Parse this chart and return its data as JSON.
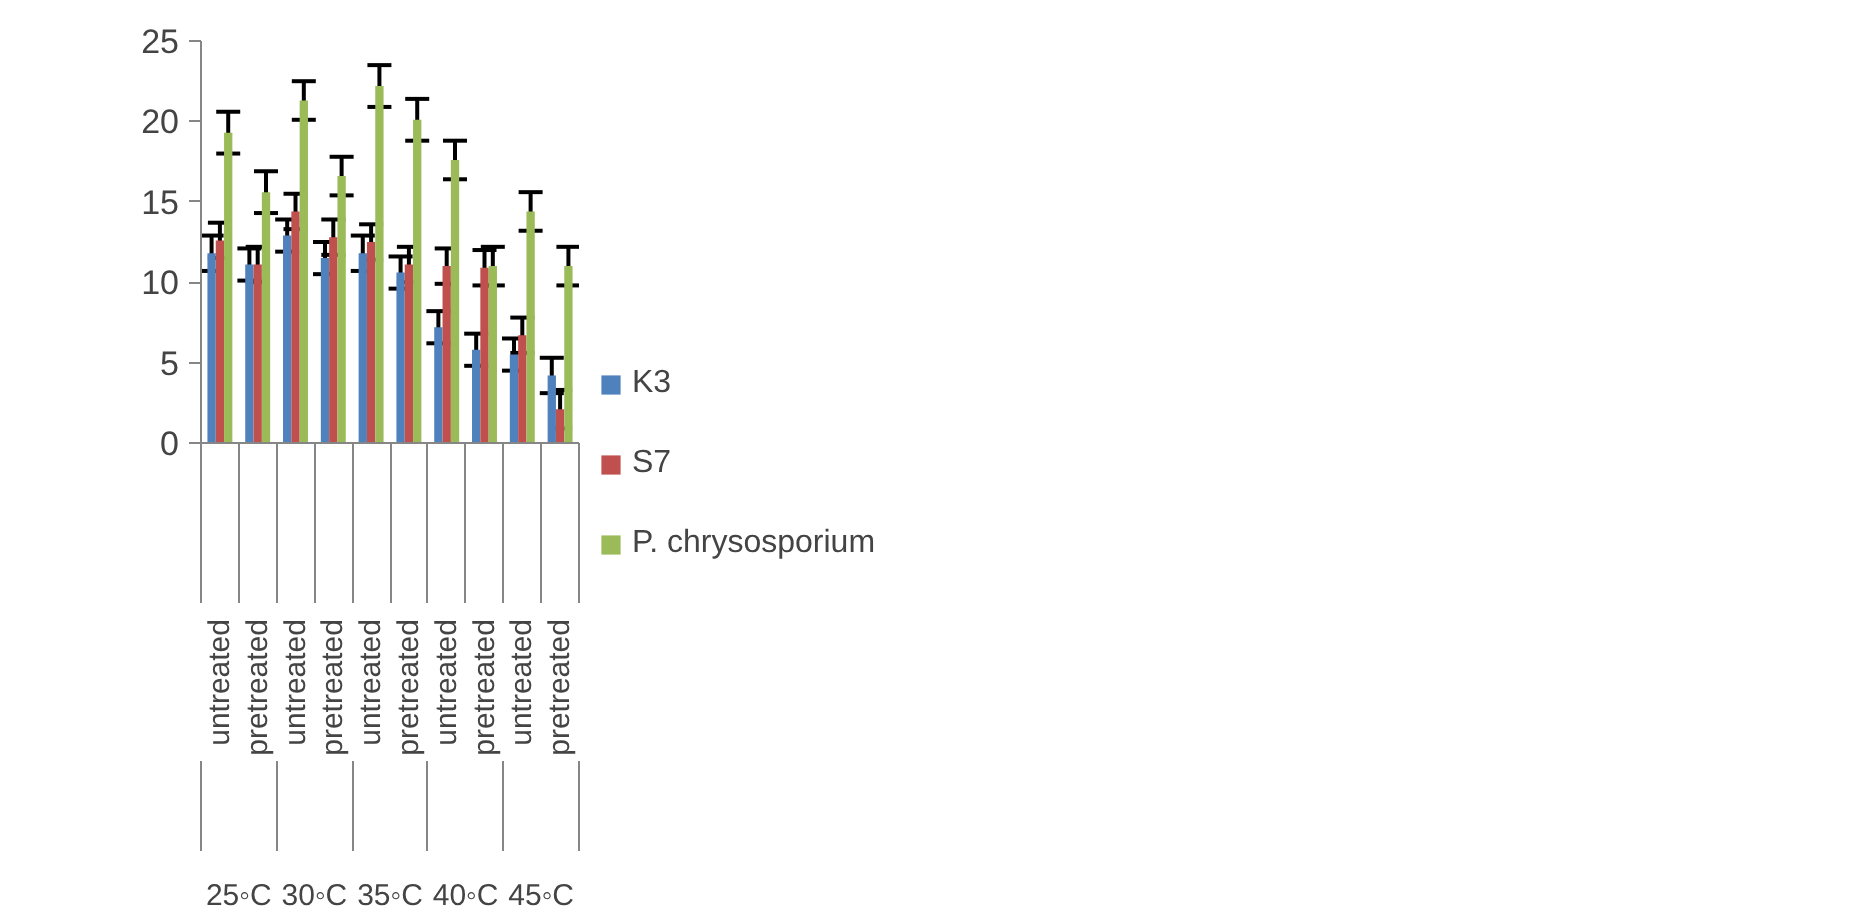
{
  "chart_data": {
    "type": "bar",
    "categories": [
      "untreated",
      "pretreated",
      "untreated",
      "pretreated",
      "untreated",
      "pretreated",
      "untreated",
      "pretreated",
      "untreated",
      "pretreated"
    ],
    "annotations": [
      "25◦C",
      "30◦C",
      "35◦C",
      "40◦C",
      "45◦C"
    ],
    "series": [
      {
        "name": "K3",
        "color": "#4f81bd",
        "values": [
          11.8,
          11.1,
          12.9,
          11.5,
          11.8,
          10.6,
          7.2,
          5.8,
          5.5,
          4.2
        ],
        "errors": [
          1.1,
          1.0,
          1.0,
          1.0,
          1.1,
          1.0,
          1.0,
          1.0,
          1.0,
          1.1
        ]
      },
      {
        "name": "S7",
        "color": "#c0504d",
        "values": [
          12.6,
          11.1,
          14.4,
          12.8,
          12.5,
          11.1,
          11.0,
          10.9,
          6.7,
          2.1
        ],
        "errors": [
          1.1,
          1.1,
          1.1,
          1.1,
          1.1,
          1.1,
          1.1,
          1.1,
          1.1,
          1.2
        ]
      },
      {
        "name": "P. chrysosporium",
        "color": "#9bbb59",
        "values": [
          19.3,
          15.6,
          21.3,
          16.6,
          22.2,
          20.1,
          17.6,
          11.0,
          14.4,
          11.0
        ],
        "errors": [
          1.3,
          1.3,
          1.2,
          1.2,
          1.3,
          1.3,
          1.2,
          1.2,
          1.2,
          1.2
        ]
      }
    ],
    "ylim": [
      0,
      25
    ],
    "yticks": [
      0,
      5,
      10,
      15,
      20,
      25
    ],
    "grid": false,
    "legend": "right"
  }
}
